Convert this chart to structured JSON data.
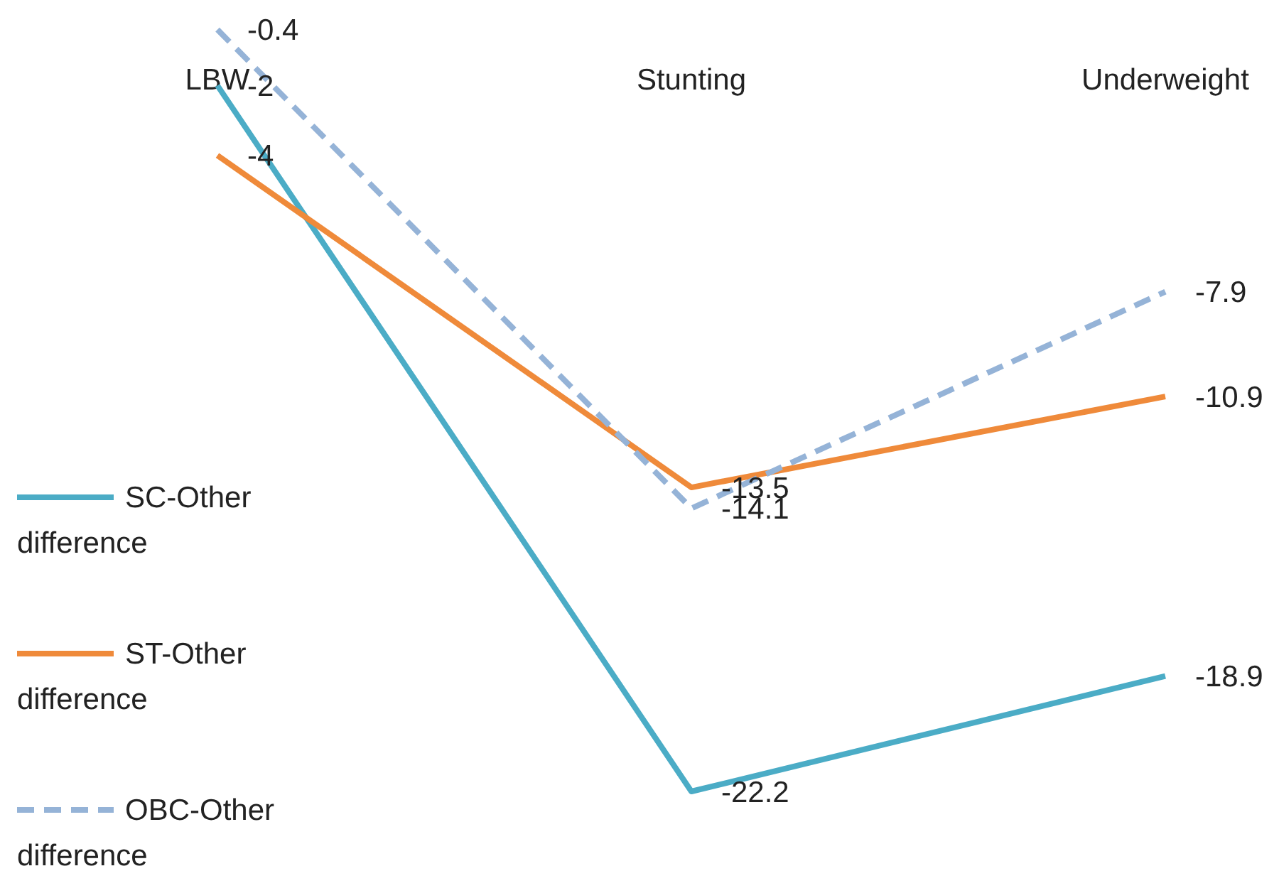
{
  "chart_data": {
    "type": "line",
    "categories": [
      "LBW",
      "Stunting",
      "Underweight"
    ],
    "series": [
      {
        "name": "SC-Other difference",
        "color": "#4bacc6",
        "values": [
          -2,
          -22.2,
          -18.9
        ]
      },
      {
        "name": "ST-Other difference",
        "color": "#ef8a3a",
        "values": [
          -4,
          -13.5,
          -10.9
        ]
      },
      {
        "name": "OBC-Other difference",
        "color": "#95b3d7",
        "values": [
          -0.4,
          -14.1,
          -7.9
        ],
        "line_style": "dashed"
      }
    ],
    "data_labels": true,
    "legend": "left",
    "grid": false,
    "marker": "none",
    "line_style": "solid"
  }
}
